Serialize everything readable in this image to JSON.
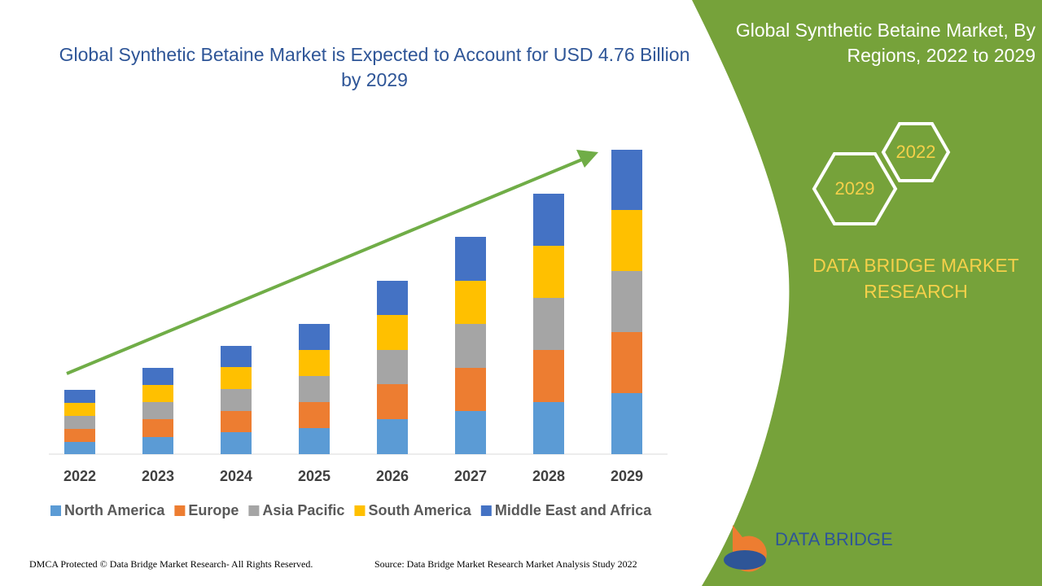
{
  "chart_data": {
    "type": "bar",
    "stacked": true,
    "title": "Global Synthetic Betaine Market is Expected to Account for USD 4.76 Billion by 2029",
    "categories": [
      "2022",
      "2023",
      "2024",
      "2025",
      "2026",
      "2027",
      "2028",
      "2029"
    ],
    "series": [
      {
        "name": "North America",
        "color": "#5b9bd5",
        "values": [
          15,
          21,
          27,
          32,
          43,
          53,
          64,
          75
        ]
      },
      {
        "name": "Europe",
        "color": "#ed7d31",
        "values": [
          16,
          22,
          26,
          32,
          43,
          53,
          64,
          75
        ]
      },
      {
        "name": "Asia Pacific",
        "color": "#a5a5a5",
        "values": [
          16,
          21,
          27,
          32,
          42,
          54,
          64,
          75
        ]
      },
      {
        "name": "South America",
        "color": "#ffc000",
        "values": [
          16,
          21,
          27,
          32,
          43,
          53,
          64,
          75
        ]
      },
      {
        "name": "Middle East and Africa",
        "color": "#4472c4",
        "values": [
          16,
          21,
          26,
          32,
          42,
          54,
          64,
          74
        ]
      }
    ],
    "ylim": [
      0,
      400
    ]
  },
  "side_panel": {
    "title": "Global Synthetic Betaine Market, By Regions, 2022 to 2029",
    "hexagons": [
      "2022",
      "2029"
    ],
    "brand": "DATA BRIDGE MARKET RESEARCH"
  },
  "logo": {
    "text": "DATA BRIDGE"
  },
  "footer": {
    "left": "DMCA Protected © Data Bridge Market Research- All Rights Reserved.",
    "right": "Source: Data Bridge Market Research Market Analysis Study 2022"
  }
}
